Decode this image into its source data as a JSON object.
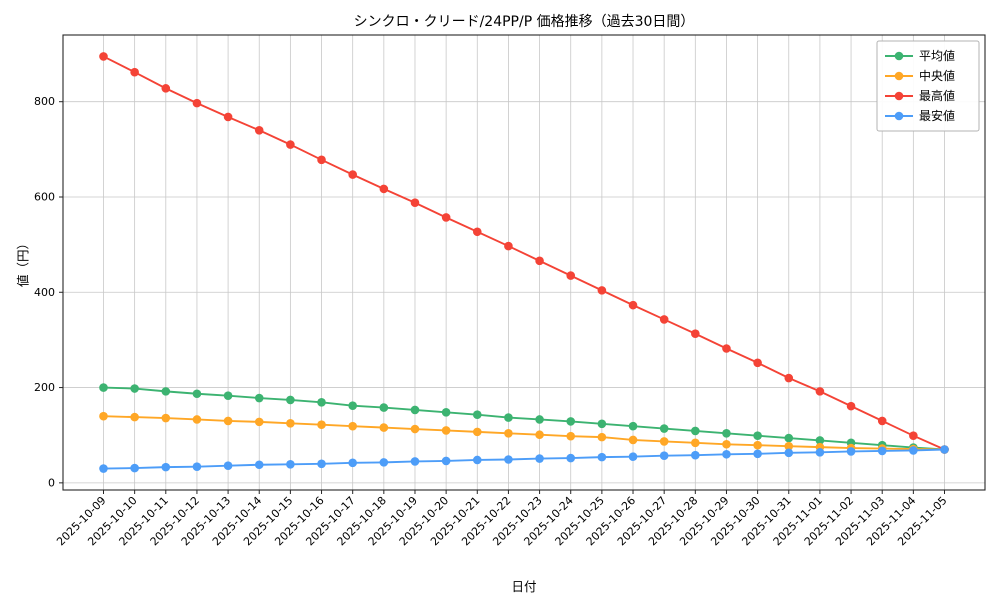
{
  "chart_data": {
    "type": "line",
    "title": "シンクロ・クリード/24PP/P 価格推移（過去30日間）",
    "xlabel": "日付",
    "ylabel": "値（円）",
    "x": [
      "2025-10-09",
      "2025-10-10",
      "2025-10-11",
      "2025-10-12",
      "2025-10-13",
      "2025-10-14",
      "2025-10-15",
      "2025-10-16",
      "2025-10-17",
      "2025-10-18",
      "2025-10-19",
      "2025-10-20",
      "2025-10-21",
      "2025-10-22",
      "2025-10-23",
      "2025-10-24",
      "2025-10-25",
      "2025-10-26",
      "2025-10-27",
      "2025-10-28",
      "2025-10-29",
      "2025-10-30",
      "2025-10-31",
      "2025-11-01",
      "2025-11-02",
      "2025-11-03",
      "2025-11-04",
      "2025-11-05"
    ],
    "series": [
      {
        "name": "平均値",
        "color": "#3cb371",
        "values": [
          200,
          198,
          192,
          187,
          183,
          178,
          174,
          169,
          162,
          158,
          153,
          148,
          143,
          137,
          133,
          129,
          124,
          119,
          114,
          109,
          104,
          99,
          94,
          89,
          84,
          79,
          74,
          70
        ]
      },
      {
        "name": "中央値",
        "color": "#ffa726",
        "values": [
          140,
          138,
          136,
          133,
          130,
          128,
          125,
          122,
          119,
          116,
          113,
          110,
          107,
          104,
          101,
          98,
          96,
          90,
          87,
          84,
          81,
          79,
          77,
          75,
          73,
          72,
          71,
          70
        ]
      },
      {
        "name": "最高値",
        "color": "#f44336",
        "values": [
          895,
          862,
          828,
          797,
          768,
          740,
          710,
          678,
          647,
          617,
          588,
          557,
          527,
          497,
          466,
          435,
          404,
          373,
          343,
          313,
          282,
          252,
          220,
          192,
          161,
          130,
          99,
          70
        ]
      },
      {
        "name": "最安値",
        "color": "#4d9df8",
        "values": [
          30,
          31,
          33,
          34,
          36,
          38,
          39,
          40,
          42,
          43,
          45,
          46,
          48,
          49,
          51,
          52,
          54,
          55,
          57,
          58,
          60,
          61,
          63,
          64,
          66,
          67,
          68,
          70
        ]
      }
    ],
    "ylim": [
      -15,
      940
    ],
    "yticks": [
      0,
      200,
      400,
      600,
      800
    ],
    "grid": true,
    "legend_position": "upper right",
    "grid_color": "#c8c8c8",
    "spine_color": "#262626"
  }
}
